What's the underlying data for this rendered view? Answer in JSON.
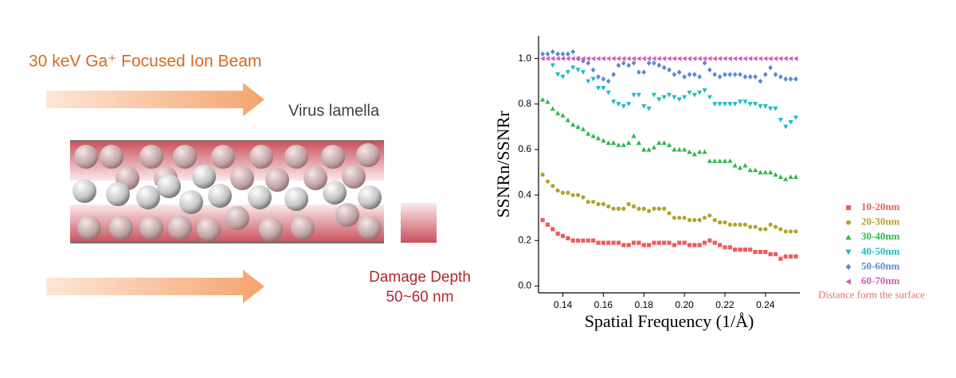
{
  "diagram": {
    "beam_label": "30 keV Ga⁺ Focused Ion Beam",
    "sample_label": "Virus lamella",
    "damage_label": "Damage Depth",
    "damage_value": "50~60 nm"
  },
  "chart_data": {
    "type": "scatter",
    "xlabel": "Spatial Frequency (1/Å)",
    "ylabel": "SSNRn/SSNRr",
    "xlim": [
      0.128,
      0.257
    ],
    "ylim": [
      -0.03,
      1.1
    ],
    "xticks": [
      0.14,
      0.16,
      0.18,
      {
        "value": 0.2,
        "label": "0.20"
      },
      0.22,
      0.24
    ],
    "yticks": [
      {
        "value": 0,
        "label": "0.0"
      },
      0.2,
      0.4,
      0.6,
      0.8,
      {
        "value": 1,
        "label": "1.0"
      }
    ],
    "legend_position": "right",
    "legend_title": "Distance form the surface",
    "x": [
      0.13,
      0.1325,
      0.135,
      0.1375,
      0.14,
      0.1425,
      0.145,
      0.1475,
      0.15,
      0.1525,
      0.155,
      0.1575,
      0.16,
      0.1625,
      0.165,
      0.1675,
      0.17,
      0.1725,
      0.175,
      0.1775,
      0.18,
      0.1825,
      0.185,
      0.1875,
      0.19,
      0.1925,
      0.195,
      0.1975,
      0.2,
      0.2025,
      0.205,
      0.2075,
      0.21,
      0.2125,
      0.215,
      0.2175,
      0.22,
      0.2225,
      0.225,
      0.2275,
      0.23,
      0.2325,
      0.235,
      0.2375,
      0.24,
      0.2425,
      0.245,
      0.2475,
      0.25,
      0.2525,
      0.255
    ],
    "series": [
      {
        "name": "10-20nm",
        "color": "#ef5b5b",
        "marker": "square",
        "values": [
          0.29,
          0.27,
          0.25,
          0.23,
          0.22,
          0.21,
          0.2,
          0.2,
          0.2,
          0.2,
          0.2,
          0.19,
          0.19,
          0.19,
          0.19,
          0.19,
          0.18,
          0.18,
          0.19,
          0.19,
          0.18,
          0.18,
          0.19,
          0.19,
          0.19,
          0.19,
          0.18,
          0.19,
          0.19,
          0.18,
          0.18,
          0.18,
          0.19,
          0.2,
          0.19,
          0.18,
          0.17,
          0.17,
          0.16,
          0.16,
          0.16,
          0.16,
          0.15,
          0.15,
          0.15,
          0.14,
          0.14,
          0.12,
          0.13,
          0.13,
          0.13
        ]
      },
      {
        "name": "20-30nm",
        "color": "#b5a22a",
        "marker": "circle",
        "values": [
          0.49,
          0.46,
          0.44,
          0.42,
          0.41,
          0.41,
          0.4,
          0.4,
          0.39,
          0.37,
          0.37,
          0.36,
          0.36,
          0.35,
          0.34,
          0.34,
          0.34,
          0.36,
          0.35,
          0.34,
          0.34,
          0.33,
          0.34,
          0.34,
          0.34,
          0.32,
          0.3,
          0.3,
          0.3,
          0.29,
          0.29,
          0.29,
          0.3,
          0.31,
          0.29,
          0.28,
          0.28,
          0.27,
          0.27,
          0.27,
          0.27,
          0.26,
          0.26,
          0.25,
          0.25,
          0.27,
          0.26,
          0.25,
          0.24,
          0.24,
          0.24
        ]
      },
      {
        "name": "30-40nm",
        "color": "#2db84a",
        "marker": "triangle-up",
        "values": [
          0.82,
          0.81,
          0.78,
          0.76,
          0.75,
          0.73,
          0.71,
          0.7,
          0.69,
          0.67,
          0.66,
          0.65,
          0.64,
          0.63,
          0.63,
          0.62,
          0.62,
          0.63,
          0.66,
          0.63,
          0.6,
          0.6,
          0.61,
          0.63,
          0.63,
          0.62,
          0.6,
          0.6,
          0.6,
          0.59,
          0.58,
          0.59,
          0.59,
          0.55,
          0.55,
          0.55,
          0.55,
          0.55,
          0.53,
          0.52,
          0.53,
          0.51,
          0.51,
          0.5,
          0.5,
          0.5,
          0.49,
          0.48,
          0.47,
          0.48,
          0.48
        ]
      },
      {
        "name": "40-50nm",
        "color": "#1fbcc0",
        "marker": "triangle-down",
        "values": [
          null,
          null,
          0.97,
          0.93,
          0.92,
          0.94,
          0.96,
          0.95,
          0.94,
          0.9,
          0.91,
          0.87,
          0.87,
          0.85,
          0.81,
          0.8,
          0.79,
          0.8,
          0.84,
          0.84,
          0.79,
          0.78,
          0.84,
          0.82,
          0.83,
          0.84,
          0.83,
          0.82,
          0.83,
          0.85,
          0.84,
          0.85,
          0.86,
          0.83,
          0.8,
          0.8,
          0.8,
          0.8,
          0.8,
          0.81,
          0.81,
          0.8,
          0.8,
          0.79,
          0.79,
          0.78,
          0.78,
          0.73,
          0.7,
          0.72,
          0.74
        ]
      },
      {
        "name": "50-60nm",
        "color": "#5b8bd0",
        "marker": "diamond",
        "values": [
          1.02,
          1.02,
          1.03,
          1.02,
          1.02,
          1.02,
          1.03,
          1.0,
          0.99,
          0.98,
          0.95,
          0.92,
          0.91,
          0.9,
          0.93,
          0.97,
          0.98,
          0.97,
          0.98,
          0.94,
          0.94,
          0.98,
          0.98,
          0.97,
          0.96,
          0.95,
          0.93,
          0.94,
          0.92,
          0.93,
          0.93,
          0.92,
          0.98,
          0.95,
          0.93,
          0.92,
          0.93,
          0.93,
          0.93,
          0.93,
          0.92,
          0.92,
          0.92,
          0.9,
          0.93,
          0.96,
          0.93,
          0.92,
          0.91,
          0.91,
          0.91
        ]
      },
      {
        "name": "60-70nm",
        "color": "#d05fb7",
        "marker": "triangle-left",
        "values": [
          1,
          1,
          1,
          1,
          1,
          1,
          1,
          1,
          1,
          1,
          1,
          1,
          1,
          1,
          1,
          1,
          1,
          1,
          1,
          1,
          1,
          1,
          1,
          1,
          1,
          1,
          1,
          1,
          1,
          1,
          1,
          1,
          1,
          1,
          1,
          1,
          1,
          1,
          1,
          1,
          1,
          1,
          1,
          1,
          1,
          1,
          1,
          1,
          1,
          1,
          1
        ]
      }
    ]
  }
}
